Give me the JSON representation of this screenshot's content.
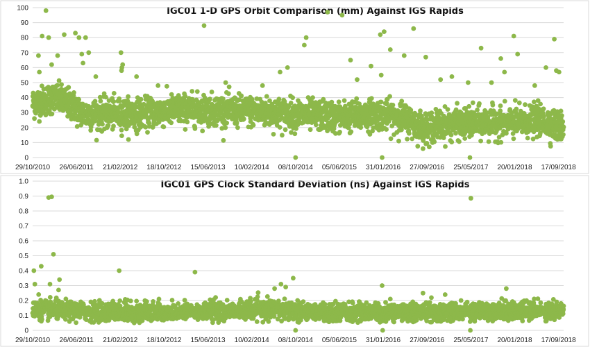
{
  "colors": {
    "point": "#8db84a",
    "grid": "#d9d9d9",
    "frame": "#cfcfcf"
  },
  "chart_data": [
    {
      "type": "scatter",
      "title": "IGC01 1-D GPS Orbit Comparison (mm) Against IGS Rapids",
      "xlabel": "",
      "ylabel": "",
      "ylim": [
        0,
        100
      ],
      "yticks": [
        0,
        10,
        20,
        30,
        40,
        50,
        60,
        70,
        80,
        90,
        100
      ],
      "xlim": [
        "2010-10-29",
        "2018-10-15"
      ],
      "xticks": [
        "29/10/2010",
        "26/06/2011",
        "21/02/2012",
        "18/10/2012",
        "15/06/2013",
        "10/02/2014",
        "08/10/2014",
        "05/06/2015",
        "31/01/2016",
        "27/09/2016",
        "25/05/2017",
        "20/01/2018",
        "17/09/2018"
      ],
      "grid": true,
      "legend": "none",
      "series": [
        {
          "baseline": [
            [
              "2010-10-29",
              36
            ],
            [
              "2011-03-01",
              40
            ],
            [
              "2011-06-01",
              35
            ],
            [
              "2011-08-01",
              29
            ],
            [
              "2012-06-01",
              29
            ],
            [
              "2013-01-01",
              32
            ],
            [
              "2013-06-01",
              32
            ],
            [
              "2014-01-01",
              31
            ],
            [
              "2014-10-01",
              29
            ],
            [
              "2015-06-01",
              27
            ],
            [
              "2016-01-01",
              29
            ],
            [
              "2016-06-01",
              26
            ],
            [
              "2016-09-01",
              20
            ],
            [
              "2017-01-01",
              22
            ],
            [
              "2017-06-01",
              23
            ],
            [
              "2018-01-01",
              23
            ],
            [
              "2018-06-01",
              25
            ],
            [
              "2018-10-15",
              20
            ]
          ],
          "scatter": 5,
          "outliers": [
            [
              "2010-11-30",
              68
            ],
            [
              "2010-12-20",
              81
            ],
            [
              "2011-01-10",
              98
            ],
            [
              "2011-01-25",
              80
            ],
            [
              "2010-12-05",
              57
            ],
            [
              "2011-02-10",
              62
            ],
            [
              "2011-03-15",
              68
            ],
            [
              "2011-04-20",
              82
            ],
            [
              "2011-06-20",
              83
            ],
            [
              "2011-07-10",
              80
            ],
            [
              "2011-08-15",
              80
            ],
            [
              "2011-07-25",
              69
            ],
            [
              "2011-09-01",
              70
            ],
            [
              "2011-08-01",
              63
            ],
            [
              "2011-10-10",
              54
            ],
            [
              "2012-02-25",
              70
            ],
            [
              "2012-03-01",
              60
            ],
            [
              "2012-03-05",
              62
            ],
            [
              "2012-02-28",
              58
            ],
            [
              "2012-05-20",
              54
            ],
            [
              "2012-09-15",
              48
            ],
            [
              "2013-05-25",
              88
            ],
            [
              "2013-09-20",
              50
            ],
            [
              "2014-04-10",
              48
            ],
            [
              "2014-08-25",
              60
            ],
            [
              "2014-07-15",
              57
            ],
            [
              "2014-10-08",
              0
            ],
            [
              "2014-11-25",
              75
            ],
            [
              "2014-12-05",
              80
            ],
            [
              "2015-04-01",
              97
            ],
            [
              "2015-06-20",
              95
            ],
            [
              "2015-08-05",
              65
            ],
            [
              "2015-09-10",
              52
            ],
            [
              "2015-11-25",
              61
            ],
            [
              "2016-01-15",
              82
            ],
            [
              "2016-02-05",
              84
            ],
            [
              "2016-03-10",
              72
            ],
            [
              "2016-01-25",
              0
            ],
            [
              "2016-01-20",
              55
            ],
            [
              "2016-05-25",
              68
            ],
            [
              "2016-07-15",
              86
            ],
            [
              "2016-09-20",
              67
            ],
            [
              "2016-12-10",
              52
            ],
            [
              "2017-02-10",
              54
            ],
            [
              "2017-05-20",
              0
            ],
            [
              "2017-05-10",
              50
            ],
            [
              "2017-07-20",
              73
            ],
            [
              "2017-09-15",
              50
            ],
            [
              "2017-11-05",
              66
            ],
            [
              "2017-11-25",
              57
            ],
            [
              "2018-01-15",
              81
            ],
            [
              "2018-02-05",
              69
            ],
            [
              "2018-05-10",
              48
            ],
            [
              "2018-07-10",
              60
            ],
            [
              "2018-08-25",
              79
            ],
            [
              "2018-09-05",
              58
            ],
            [
              "2018-09-20",
              57
            ],
            [
              "2018-10-05",
              28
            ]
          ]
        }
      ]
    },
    {
      "type": "scatter",
      "title": "IGC01 GPS Clock Standard Deviation (ns) Against IGS Rapids",
      "xlabel": "",
      "ylabel": "",
      "ylim": [
        0,
        1
      ],
      "yticks": [
        "0",
        "0.1",
        "0.2",
        "0.3",
        "0.4",
        "0.5",
        "0.6",
        "0.7",
        "0.8",
        "0.9",
        "1.0"
      ],
      "xlim": [
        "2010-10-29",
        "2018-10-15"
      ],
      "xticks": [
        "29/10/2010",
        "26/06/2011",
        "21/02/2012",
        "18/10/2012",
        "15/06/2013",
        "10/02/2014",
        "08/10/2014",
        "05/06/2015",
        "31/01/2016",
        "27/09/2016",
        "25/05/2017",
        "20/01/2018",
        "17/09/2018"
      ],
      "grid": true,
      "legend": "none",
      "series": [
        {
          "baseline": [
            [
              "2010-10-29",
              0.14
            ],
            [
              "2011-06-01",
              0.13
            ],
            [
              "2012-06-01",
              0.12
            ],
            [
              "2013-06-01",
              0.13
            ],
            [
              "2014-06-01",
              0.14
            ],
            [
              "2015-06-01",
              0.12
            ],
            [
              "2016-06-01",
              0.12
            ],
            [
              "2017-06-01",
              0.13
            ],
            [
              "2018-10-15",
              0.13
            ]
          ],
          "scatter": 0.03,
          "outliers": [
            [
              "2010-11-05",
              0.4
            ],
            [
              "2010-11-10",
              0.31
            ],
            [
              "2010-12-15",
              0.43
            ],
            [
              "2011-01-25",
              0.89
            ],
            [
              "2011-02-10",
              0.895
            ],
            [
              "2011-02-20",
              0.51
            ],
            [
              "2011-02-01",
              0.31
            ],
            [
              "2011-03-25",
              0.34
            ],
            [
              "2011-03-20",
              0.27
            ],
            [
              "2010-12-01",
              0.24
            ],
            [
              "2012-02-15",
              0.4
            ],
            [
              "2013-04-05",
              0.39
            ],
            [
              "2014-06-15",
              0.28
            ],
            [
              "2014-07-20",
              0.31
            ],
            [
              "2014-08-15",
              0.29
            ],
            [
              "2014-09-25",
              0.35
            ],
            [
              "2014-10-08",
              0.0
            ],
            [
              "2016-01-25",
              0.3
            ],
            [
              "2016-01-28",
              0.0
            ],
            [
              "2016-09-05",
              0.25
            ],
            [
              "2017-05-25",
              0.885
            ],
            [
              "2017-05-22",
              0.0
            ],
            [
              "2017-12-05",
              0.28
            ],
            [
              "2016-03-10",
              0.21
            ],
            [
              "2012-09-20",
              0.21
            ],
            [
              "2013-07-15",
              0.2
            ]
          ]
        }
      ]
    }
  ]
}
